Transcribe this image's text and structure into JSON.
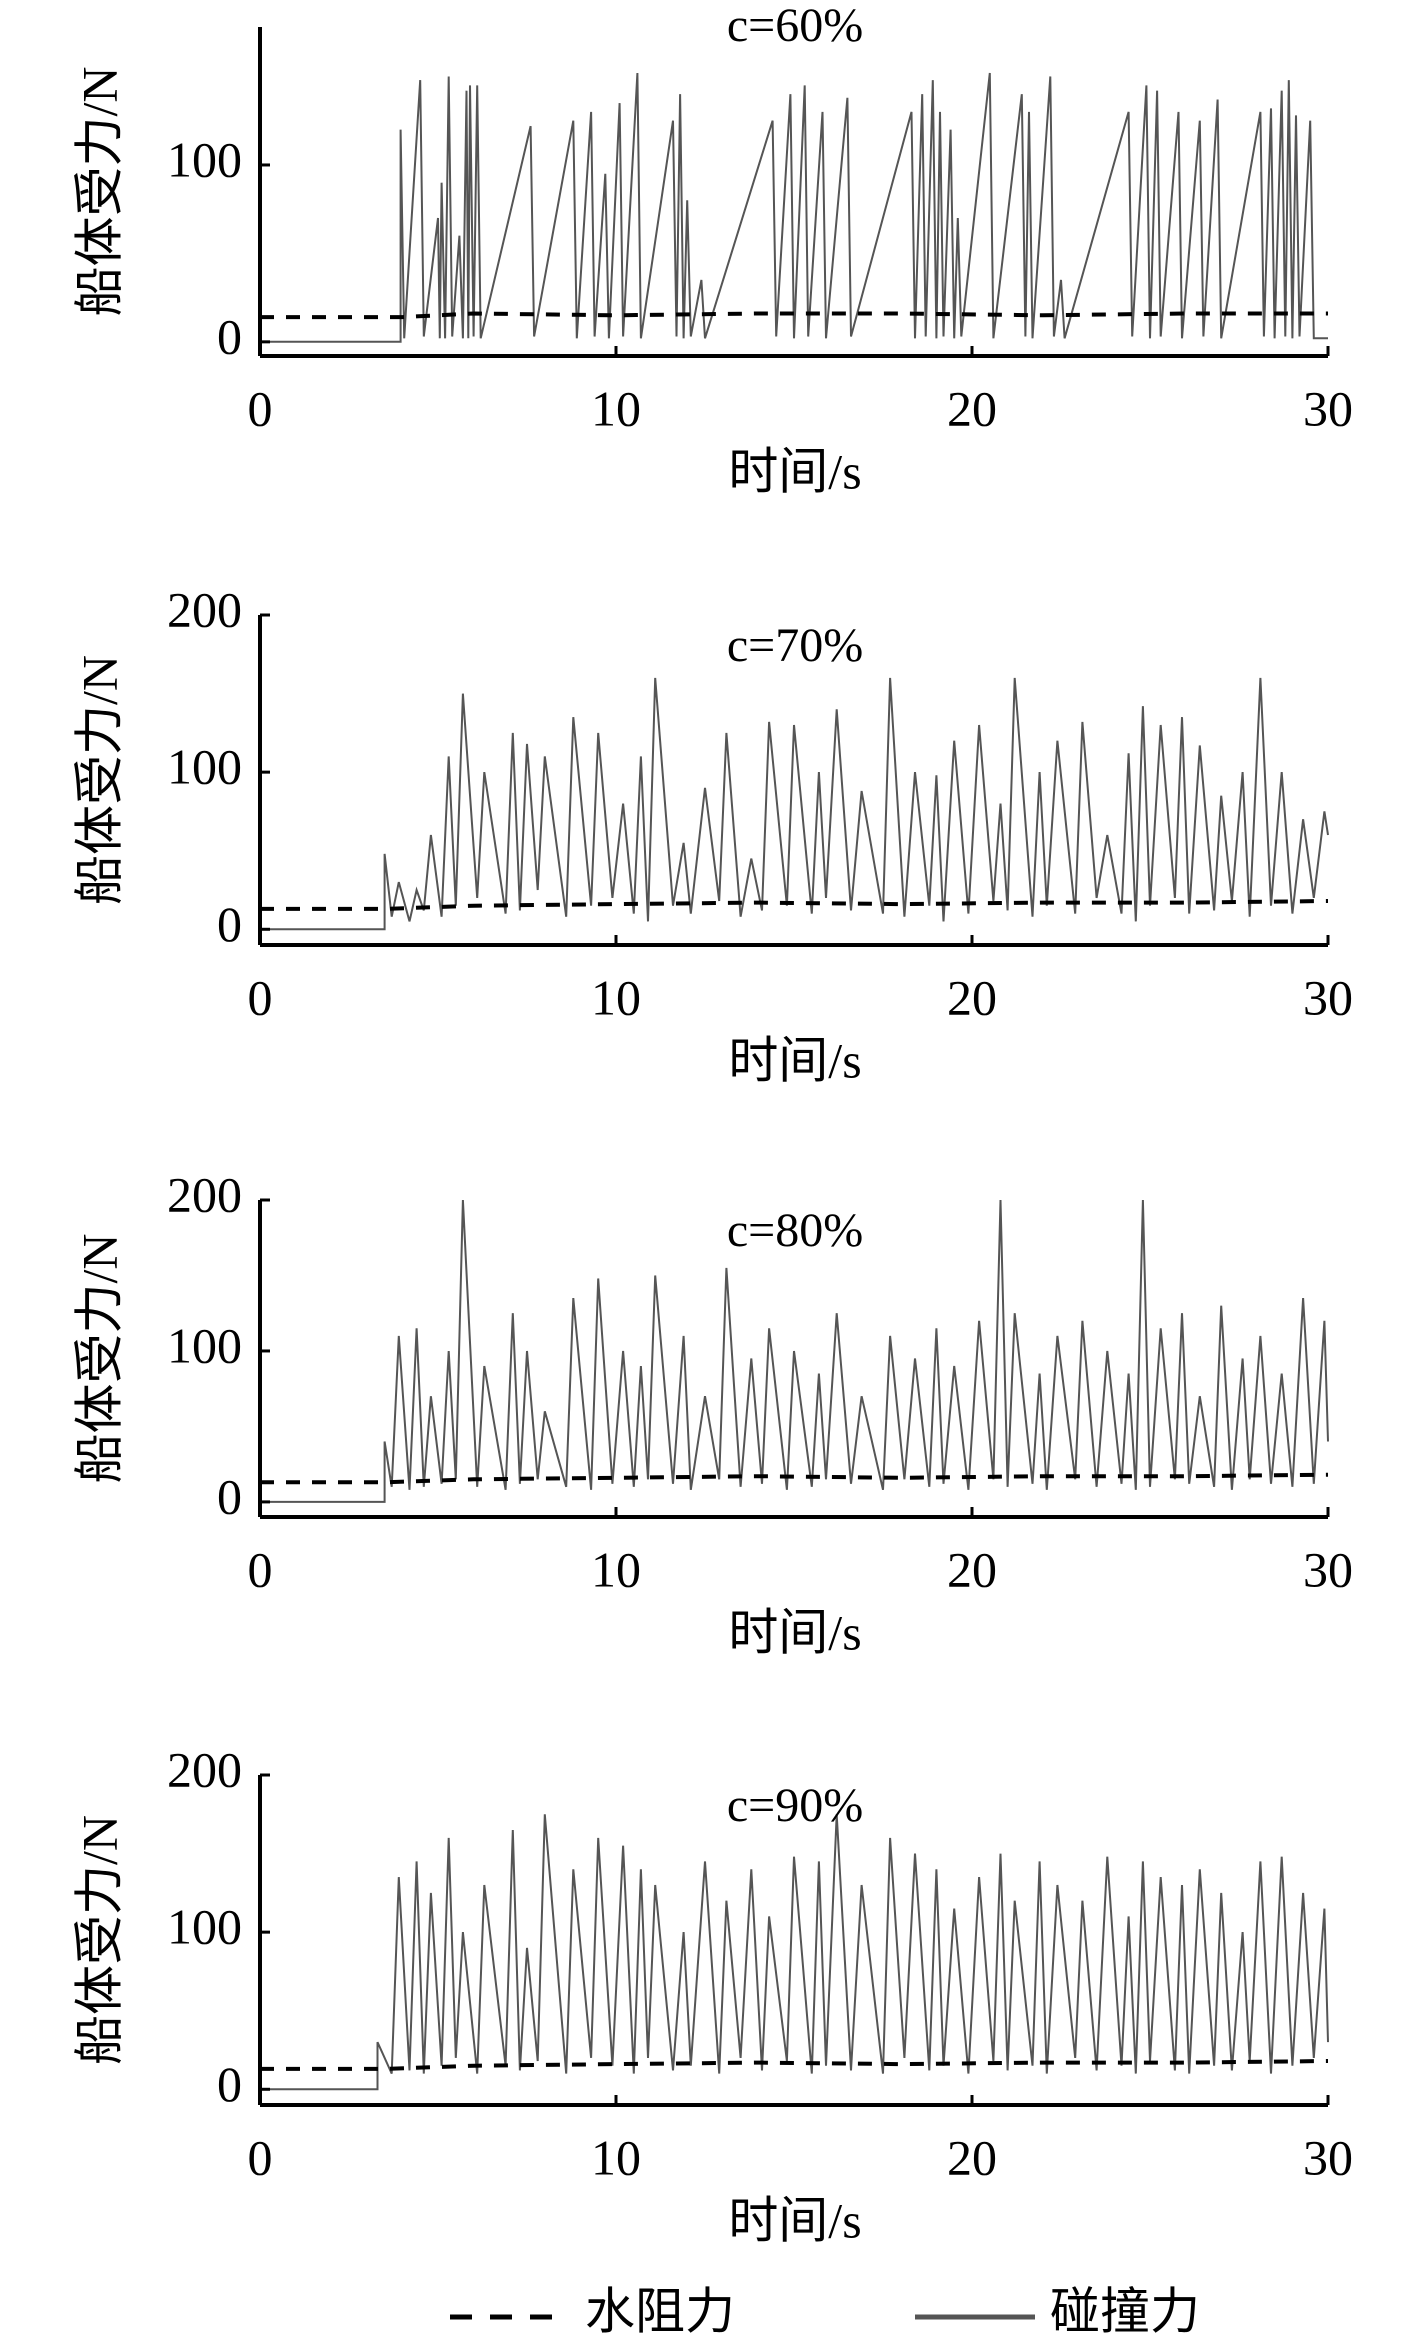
{
  "chart_data": [
    {
      "type": "line",
      "title": "c=60%",
      "xlabel": "时间/s",
      "ylabel": "船体受力/N",
      "xlim": [
        0,
        30
      ],
      "xticks": [
        0,
        10,
        20,
        30
      ],
      "ylim": [
        -8,
        178
      ],
      "yticks": [
        0,
        100
      ],
      "series": [
        {
          "name": "水阻力",
          "color": "#000000",
          "style": "dashed",
          "x": [
            0,
            4,
            6,
            10,
            14,
            18,
            22,
            26,
            30
          ],
          "values": [
            14,
            14,
            16,
            15,
            16,
            16,
            15,
            16,
            16
          ]
        },
        {
          "name": "碰撞力",
          "color": "#555555",
          "style": "solid",
          "x": [
            0,
            3.95,
            3.95,
            4.05,
            4.5,
            4.6,
            5.0,
            5.05,
            5.1,
            5.2,
            5.3,
            5.4,
            5.6,
            5.7,
            5.8,
            5.85,
            5.9,
            6.0,
            6.1,
            6.2,
            7.6,
            7.7,
            8.8,
            8.9,
            9.3,
            9.4,
            9.7,
            9.8,
            10.1,
            10.2,
            10.6,
            10.7,
            11.6,
            11.7,
            11.8,
            11.9,
            12.0,
            12.1,
            12.4,
            12.5,
            14.4,
            14.5,
            14.9,
            15.0,
            15.3,
            15.4,
            15.8,
            15.9,
            16.5,
            16.6,
            18.3,
            18.4,
            18.6,
            18.7,
            18.9,
            19.0,
            19.1,
            19.2,
            19.4,
            19.5,
            19.6,
            19.7,
            20.5,
            20.6,
            21.4,
            21.5,
            21.6,
            21.7,
            22.2,
            22.3,
            22.5,
            22.6,
            24.4,
            24.5,
            24.9,
            25.0,
            25.2,
            25.3,
            25.8,
            25.9,
            26.4,
            26.5,
            26.9,
            27.0,
            28.1,
            28.2,
            28.4,
            28.5,
            28.7,
            28.8,
            28.9,
            29.0,
            29.1,
            29.2,
            29.5,
            29.6,
            30
          ],
          "values": [
            0,
            0,
            120,
            2,
            148,
            3,
            70,
            2,
            90,
            2,
            150,
            3,
            60,
            2,
            142,
            2,
            145,
            3,
            145,
            2,
            122,
            3,
            125,
            2,
            130,
            3,
            95,
            2,
            135,
            3,
            152,
            2,
            125,
            3,
            140,
            2,
            80,
            3,
            35,
            2,
            125,
            3,
            140,
            2,
            145,
            3,
            130,
            2,
            138,
            3,
            130,
            2,
            140,
            3,
            148,
            2,
            130,
            3,
            120,
            2,
            70,
            3,
            152,
            2,
            140,
            3,
            130,
            2,
            150,
            3,
            35,
            2,
            130,
            3,
            145,
            2,
            142,
            3,
            130,
            2,
            125,
            3,
            137,
            2,
            130,
            3,
            132,
            2,
            142,
            3,
            148,
            2,
            128,
            3,
            125,
            2,
            2
          ]
        }
      ]
    },
    {
      "type": "line",
      "title": "c=70%",
      "xlabel": "时间/s",
      "ylabel": "船体受力/N",
      "xlim": [
        0,
        30
      ],
      "xticks": [
        0,
        10,
        20,
        30
      ],
      "ylim": [
        -10,
        200
      ],
      "yticks": [
        0,
        100,
        200
      ],
      "series": [
        {
          "name": "水阻力",
          "color": "#000000",
          "style": "dashed",
          "x": [
            0,
            3.5,
            6,
            10,
            14,
            18,
            22,
            26,
            30
          ],
          "values": [
            13,
            13,
            15,
            16,
            17,
            16,
            17,
            17,
            18
          ]
        },
        {
          "name": "碰撞力",
          "color": "#555555",
          "style": "solid",
          "x": [
            0,
            3.5,
            3.5,
            3.7,
            3.9,
            4.2,
            4.4,
            4.6,
            4.8,
            5.1,
            5.3,
            5.5,
            5.7,
            6.1,
            6.3,
            6.9,
            7.1,
            7.3,
            7.5,
            7.8,
            8.0,
            8.6,
            8.8,
            9.3,
            9.5,
            9.9,
            10.2,
            10.5,
            10.7,
            10.9,
            11.1,
            11.6,
            11.9,
            12.1,
            12.5,
            12.9,
            13.1,
            13.5,
            13.8,
            14.1,
            14.3,
            14.8,
            15.0,
            15.5,
            15.7,
            15.9,
            16.2,
            16.6,
            16.9,
            17.5,
            17.7,
            18.1,
            18.4,
            18.8,
            19.0,
            19.2,
            19.5,
            19.9,
            20.2,
            20.6,
            20.8,
            21.0,
            21.2,
            21.7,
            21.9,
            22.1,
            22.4,
            22.9,
            23.1,
            23.5,
            23.8,
            24.2,
            24.4,
            24.6,
            24.8,
            25.0,
            25.3,
            25.7,
            25.9,
            26.1,
            26.4,
            26.8,
            27.0,
            27.3,
            27.6,
            27.8,
            28.1,
            28.4,
            28.7,
            29.0,
            29.3,
            29.6,
            29.9,
            30
          ],
          "values": [
            0,
            0,
            48,
            8,
            30,
            5,
            25,
            12,
            60,
            8,
            110,
            15,
            150,
            20,
            100,
            10,
            125,
            12,
            118,
            25,
            110,
            8,
            135,
            15,
            125,
            20,
            80,
            10,
            110,
            5,
            160,
            15,
            55,
            10,
            90,
            18,
            125,
            8,
            45,
            12,
            132,
            15,
            130,
            10,
            100,
            20,
            140,
            12,
            88,
            10,
            160,
            8,
            100,
            15,
            98,
            5,
            120,
            10,
            130,
            18,
            80,
            12,
            160,
            8,
            100,
            15,
            120,
            10,
            132,
            20,
            60,
            10,
            112,
            5,
            142,
            15,
            130,
            20,
            135,
            10,
            117,
            12,
            85,
            18,
            100,
            8,
            160,
            15,
            100,
            10,
            70,
            20,
            75,
            60
          ]
        }
      ]
    },
    {
      "type": "line",
      "title": "c=80%",
      "xlabel": "时间/s",
      "ylabel": "船体受力/N",
      "xlim": [
        0,
        30
      ],
      "xticks": [
        0,
        10,
        20,
        30
      ],
      "ylim": [
        -10,
        200
      ],
      "yticks": [
        0,
        100,
        200
      ],
      "series": [
        {
          "name": "水阻力",
          "color": "#000000",
          "style": "dashed",
          "x": [
            0,
            3.5,
            6,
            10,
            14,
            18,
            22,
            26,
            30
          ],
          "values": [
            13,
            13,
            15,
            16,
            17,
            16,
            17,
            17,
            18
          ]
        },
        {
          "name": "碰撞力",
          "color": "#555555",
          "style": "solid",
          "x": [
            0,
            3.5,
            3.5,
            3.7,
            3.9,
            4.2,
            4.4,
            4.6,
            4.8,
            5.1,
            5.3,
            5.5,
            5.7,
            6.1,
            6.3,
            6.9,
            7.1,
            7.3,
            7.5,
            7.8,
            8.0,
            8.6,
            8.8,
            9.3,
            9.5,
            9.9,
            10.2,
            10.5,
            10.7,
            10.9,
            11.1,
            11.6,
            11.9,
            12.1,
            12.5,
            12.9,
            13.1,
            13.5,
            13.8,
            14.1,
            14.3,
            14.8,
            15.0,
            15.5,
            15.7,
            15.9,
            16.2,
            16.6,
            16.9,
            17.5,
            17.7,
            18.1,
            18.4,
            18.8,
            19.0,
            19.2,
            19.5,
            19.9,
            20.2,
            20.6,
            20.8,
            21.0,
            21.2,
            21.7,
            21.9,
            22.1,
            22.4,
            22.9,
            23.1,
            23.5,
            23.8,
            24.2,
            24.4,
            24.6,
            24.8,
            25.0,
            25.3,
            25.7,
            25.9,
            26.1,
            26.4,
            26.8,
            27.0,
            27.3,
            27.6,
            27.8,
            28.1,
            28.4,
            28.7,
            29.0,
            29.3,
            29.6,
            29.9,
            30
          ],
          "values": [
            0,
            0,
            40,
            10,
            110,
            8,
            115,
            10,
            70,
            12,
            100,
            15,
            200,
            10,
            90,
            8,
            125,
            12,
            100,
            15,
            60,
            10,
            135,
            8,
            148,
            12,
            100,
            10,
            90,
            15,
            150,
            12,
            110,
            8,
            70,
            15,
            155,
            10,
            95,
            12,
            115,
            8,
            100,
            10,
            85,
            15,
            125,
            12,
            70,
            8,
            110,
            15,
            95,
            10,
            115,
            12,
            90,
            8,
            120,
            15,
            200,
            10,
            125,
            12,
            85,
            8,
            110,
            15,
            120,
            10,
            100,
            12,
            85,
            8,
            200,
            10,
            115,
            15,
            125,
            12,
            70,
            10,
            130,
            8,
            95,
            15,
            110,
            12,
            85,
            10,
            135,
            12,
            120,
            40
          ]
        }
      ]
    },
    {
      "type": "line",
      "title": "c=90%",
      "xlabel": "时间/s",
      "ylabel": "船体受力/N",
      "xlim": [
        0,
        30
      ],
      "xticks": [
        0,
        10,
        20,
        30
      ],
      "ylim": [
        -10,
        200
      ],
      "yticks": [
        0,
        100,
        200
      ],
      "series": [
        {
          "name": "水阻力",
          "color": "#000000",
          "style": "dashed",
          "x": [
            0,
            3.5,
            6,
            10,
            14,
            18,
            22,
            26,
            30
          ],
          "values": [
            13,
            13,
            15,
            16,
            17,
            16,
            17,
            17,
            18
          ]
        },
        {
          "name": "碰撞力",
          "color": "#555555",
          "style": "solid",
          "x": [
            0,
            3.3,
            3.3,
            3.7,
            3.9,
            4.2,
            4.4,
            4.6,
            4.8,
            5.1,
            5.3,
            5.5,
            5.7,
            6.1,
            6.3,
            6.9,
            7.1,
            7.3,
            7.5,
            7.8,
            8.0,
            8.6,
            8.8,
            9.3,
            9.5,
            9.9,
            10.2,
            10.5,
            10.7,
            10.9,
            11.1,
            11.6,
            11.9,
            12.1,
            12.5,
            12.9,
            13.1,
            13.5,
            13.8,
            14.1,
            14.3,
            14.8,
            15.0,
            15.5,
            15.7,
            15.9,
            16.2,
            16.6,
            16.9,
            17.5,
            17.7,
            18.1,
            18.4,
            18.8,
            19.0,
            19.2,
            19.5,
            19.9,
            20.2,
            20.6,
            20.8,
            21.0,
            21.2,
            21.7,
            21.9,
            22.1,
            22.4,
            22.9,
            23.1,
            23.5,
            23.8,
            24.2,
            24.4,
            24.6,
            24.8,
            25.0,
            25.3,
            25.7,
            25.9,
            26.1,
            26.4,
            26.8,
            27.0,
            27.3,
            27.6,
            27.8,
            28.1,
            28.4,
            28.7,
            29.0,
            29.3,
            29.6,
            29.9,
            30
          ],
          "values": [
            0,
            0,
            30,
            10,
            135,
            12,
            145,
            10,
            125,
            15,
            160,
            20,
            100,
            10,
            130,
            15,
            165,
            12,
            90,
            18,
            175,
            10,
            140,
            20,
            160,
            15,
            155,
            10,
            140,
            20,
            130,
            12,
            100,
            15,
            145,
            10,
            120,
            20,
            140,
            12,
            110,
            18,
            148,
            10,
            145,
            15,
            175,
            12,
            130,
            10,
            160,
            20,
            150,
            12,
            140,
            15,
            115,
            10,
            135,
            18,
            150,
            12,
            120,
            15,
            145,
            10,
            130,
            20,
            120,
            12,
            148,
            15,
            110,
            10,
            145,
            18,
            135,
            12,
            130,
            10,
            140,
            15,
            125,
            12,
            100,
            18,
            145,
            10,
            148,
            15,
            125,
            20,
            115,
            30
          ]
        }
      ]
    }
  ]
}
